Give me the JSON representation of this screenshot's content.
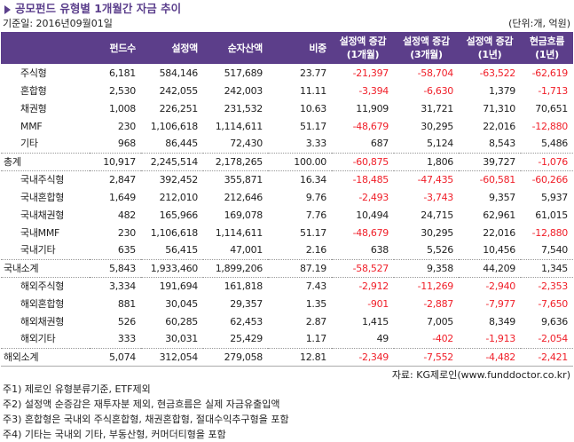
{
  "title": "공모펀드 유형별 1개월간 자금 추이",
  "base_date": "기준일: 2016년09월01일",
  "unit": "(단위:개, 억원)",
  "columns": [
    "",
    "펀드수",
    "설정액",
    "순자산액",
    "비중",
    "설정액 증감\n(1개월)",
    "설정액 증감\n(3개월)",
    "설정액 증감\n(1년)",
    "현금흐름\n(1년)"
  ],
  "rows": [
    {
      "label": "주식형",
      "values": [
        "6,181",
        "584,146",
        "517,689",
        "23.77",
        "-21,397",
        "-58,704",
        "-63,522",
        "-62,619"
      ]
    },
    {
      "label": "혼합형",
      "values": [
        "2,530",
        "242,055",
        "242,003",
        "11.11",
        "-3,394",
        "-6,630",
        "1,379",
        "-1,713"
      ]
    },
    {
      "label": "채권형",
      "values": [
        "1,008",
        "226,251",
        "231,532",
        "10.63",
        "11,909",
        "31,721",
        "71,310",
        "70,651"
      ]
    },
    {
      "label": "MMF",
      "values": [
        "230",
        "1,106,618",
        "1,114,611",
        "51.17",
        "-48,679",
        "30,295",
        "22,016",
        "-12,880"
      ]
    },
    {
      "label": "기타",
      "values": [
        "968",
        "86,445",
        "72,430",
        "3.33",
        "687",
        "5,124",
        "8,543",
        "5,486"
      ],
      "sep": "dot"
    },
    {
      "label": "총계",
      "values": [
        "10,917",
        "2,245,514",
        "2,178,265",
        "100.00",
        "-60,875",
        "1,806",
        "39,727",
        "-1,076"
      ],
      "sum": true,
      "sep": "dot"
    },
    {
      "label": "국내주식형",
      "values": [
        "2,847",
        "392,452",
        "355,871",
        "16.34",
        "-18,485",
        "-47,435",
        "-60,581",
        "-60,266"
      ]
    },
    {
      "label": "국내혼합형",
      "values": [
        "1,649",
        "212,010",
        "212,646",
        "9.76",
        "-2,493",
        "-3,743",
        "9,357",
        "5,937"
      ]
    },
    {
      "label": "국내채권형",
      "values": [
        "482",
        "165,966",
        "169,078",
        "7.76",
        "10,494",
        "24,715",
        "62,961",
        "61,015"
      ]
    },
    {
      "label": "국내MMF",
      "values": [
        "230",
        "1,106,618",
        "1,114,611",
        "51.17",
        "-48,679",
        "30,295",
        "22,016",
        "-12,880"
      ]
    },
    {
      "label": "국내기타",
      "values": [
        "635",
        "56,415",
        "47,001",
        "2.16",
        "638",
        "5,526",
        "10,456",
        "7,540"
      ],
      "sep": "dot"
    },
    {
      "label": "국내소계",
      "values": [
        "5,843",
        "1,933,460",
        "1,899,206",
        "87.19",
        "-58,527",
        "9,358",
        "44,209",
        "1,345"
      ],
      "sum": true,
      "sep": "dot"
    },
    {
      "label": "해외주식형",
      "values": [
        "3,334",
        "191,694",
        "161,818",
        "7.43",
        "-2,912",
        "-11,269",
        "-2,940",
        "-2,353"
      ]
    },
    {
      "label": "해외혼합형",
      "values": [
        "881",
        "30,045",
        "29,357",
        "1.35",
        "-901",
        "-2,887",
        "-7,977",
        "-7,650"
      ]
    },
    {
      "label": "해외채권형",
      "values": [
        "526",
        "60,285",
        "62,453",
        "2.87",
        "1,415",
        "7,005",
        "8,349",
        "9,636"
      ]
    },
    {
      "label": "해외기타",
      "values": [
        "333",
        "30,031",
        "25,429",
        "1.17",
        "49",
        "-402",
        "-1,913",
        "-2,054"
      ],
      "sep": "dot"
    },
    {
      "label": "해외소계",
      "values": [
        "5,074",
        "312,054",
        "279,058",
        "12.81",
        "-2,349",
        "-7,552",
        "-4,482",
        "-2,421"
      ],
      "sum": true,
      "sep": "solid"
    }
  ],
  "source": "자료: KG제로인(www.funddoctor.co.kr)",
  "notes": [
    "주1) 제로인 유형분류기준, ETF제외",
    "주2) 설정액 순증감은 재투자분 제외, 현금흐름은 실제 자금유출입액",
    "주3) 혼합형은 국내외 주식혼합형, 채권혼합형, 절대수익추구형을 포함",
    "주4) 기타는 국내외 기타, 부동산형, 커머더티형을 포함"
  ],
  "colors": {
    "header": "#5c3e8a",
    "negative": "#f0202a"
  }
}
